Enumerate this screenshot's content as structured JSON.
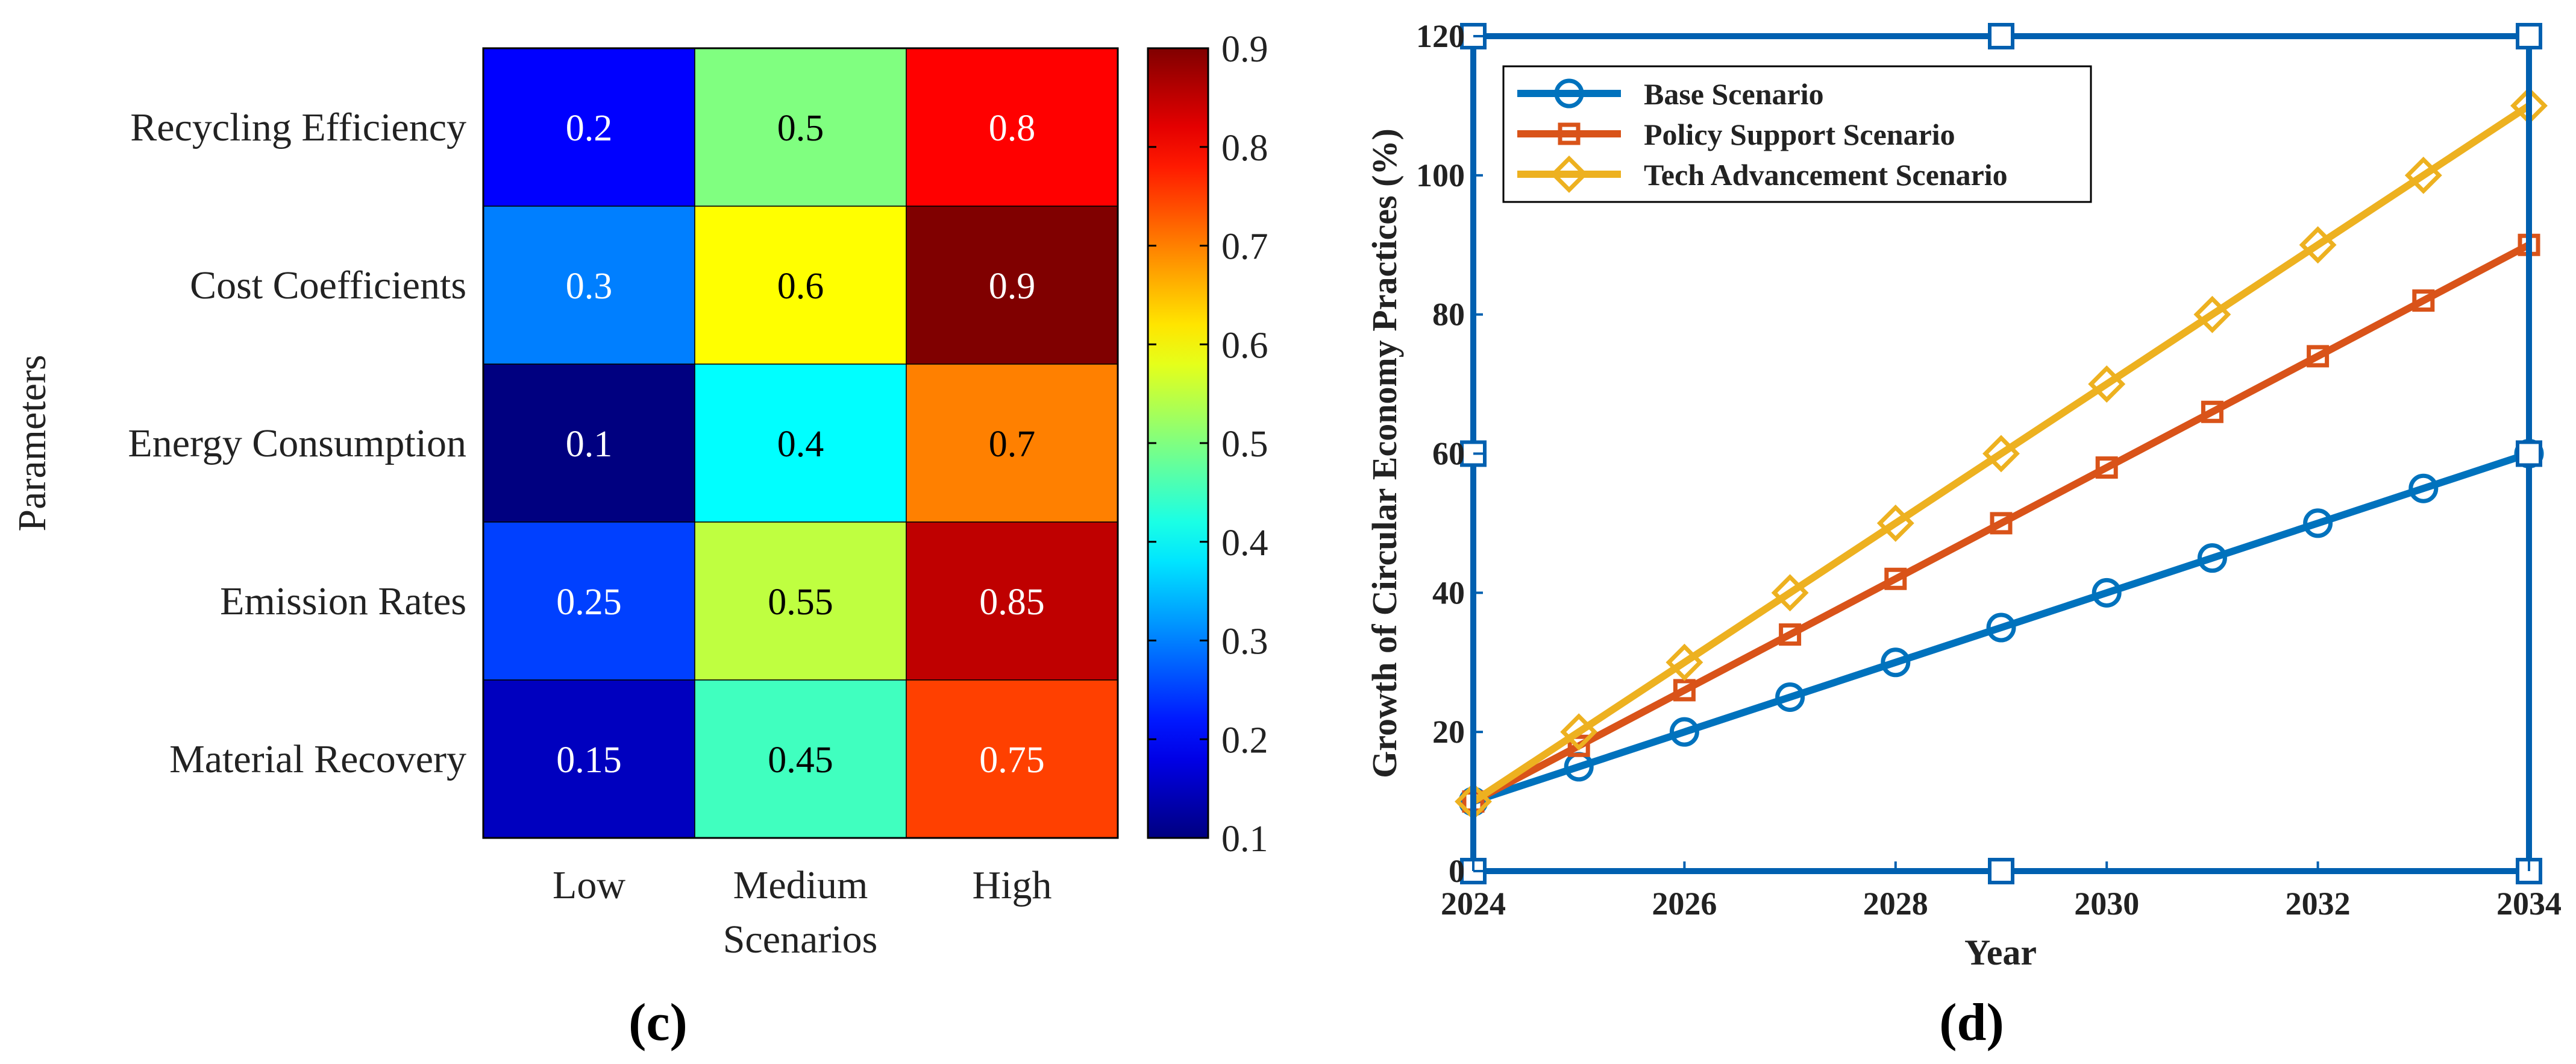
{
  "chart_data": [
    {
      "type": "heatmap",
      "panel_label": "(c)",
      "xlabel": "Scenarios",
      "ylabel": "Parameters",
      "x_categories": [
        "Low",
        "Medium",
        "High"
      ],
      "y_categories": [
        "Recycling Efficiency",
        "Cost Coefficients",
        "Energy Consumption",
        "Emission Rates",
        "Material Recovery"
      ],
      "values": [
        [
          0.2,
          0.5,
          0.8
        ],
        [
          0.3,
          0.6,
          0.9
        ],
        [
          0.1,
          0.4,
          0.7
        ],
        [
          0.25,
          0.55,
          0.85
        ],
        [
          0.15,
          0.45,
          0.75
        ]
      ],
      "cell_labels": [
        [
          "0.2",
          "0.5",
          "0.8"
        ],
        [
          "0.3",
          "0.6",
          "0.9"
        ],
        [
          "0.1",
          "0.4",
          "0.7"
        ],
        [
          "0.25",
          "0.55",
          "0.85"
        ],
        [
          "0.15",
          "0.45",
          "0.75"
        ]
      ],
      "colorbar": {
        "min": 0.1,
        "max": 0.9,
        "colormap": "jet",
        "ticks": [
          0.1,
          0.2,
          0.3,
          0.4,
          0.5,
          0.6,
          0.7,
          0.8,
          0.9
        ],
        "tick_labels": [
          "0.1",
          "0.2",
          "0.3",
          "0.4",
          "0.5",
          "0.6",
          "0.7",
          "0.8",
          "0.9"
        ]
      }
    },
    {
      "type": "line",
      "panel_label": "(d)",
      "xlabel": "Year",
      "ylabel": "Growth of Circular Economy Practices (%)",
      "x": [
        2024,
        2025,
        2026,
        2027,
        2028,
        2029,
        2030,
        2031,
        2032,
        2033,
        2034
      ],
      "xlim": [
        2024,
        2034
      ],
      "ylim": [
        0,
        120
      ],
      "xticks": [
        2024,
        2026,
        2028,
        2030,
        2032,
        2034
      ],
      "xtick_labels": [
        "2024",
        "2026",
        "2028",
        "2030",
        "2032",
        "2034"
      ],
      "yticks": [
        0,
        20,
        40,
        60,
        80,
        100,
        120
      ],
      "ytick_labels": [
        "0",
        "20",
        "40",
        "60",
        "80",
        "100",
        "120"
      ],
      "legend_position": "top-left",
      "series": [
        {
          "name": "Base Scenario",
          "color": "#0072BD",
          "marker": "circle",
          "values": [
            10,
            15,
            20,
            25,
            30,
            35,
            40,
            45,
            50,
            55,
            60
          ]
        },
        {
          "name": "Policy Support Scenario",
          "color": "#D95319",
          "marker": "square",
          "values": [
            10,
            18,
            26,
            34,
            42,
            50,
            58,
            66,
            74,
            82,
            90
          ]
        },
        {
          "name": "Tech Advancement Scenario",
          "color": "#EDB120",
          "marker": "diamond",
          "values": [
            10,
            20,
            30,
            40,
            50,
            60,
            70,
            80,
            90,
            100,
            110
          ]
        }
      ]
    }
  ]
}
